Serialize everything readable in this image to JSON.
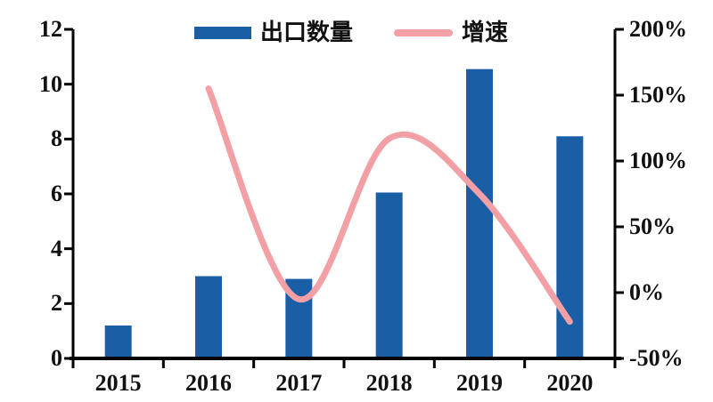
{
  "legend": {
    "items": [
      {
        "label": "出口数量",
        "type": "bar"
      },
      {
        "label": "增速",
        "type": "line"
      }
    ]
  },
  "colors": {
    "bar": "#1a5fa6",
    "line": "#f2a0a5",
    "axis": "#000000",
    "text": "#111111",
    "background": "#ffffff"
  },
  "chart_data": {
    "type": "bar+line",
    "title": "",
    "legend_position": "top",
    "grid": false,
    "categories": [
      "2015",
      "2016",
      "2017",
      "2018",
      "2019",
      "2020"
    ],
    "series": [
      {
        "name": "出口数量",
        "type": "bar",
        "axis": "left",
        "values": [
          1.2,
          3.0,
          2.9,
          6.05,
          10.55,
          8.1
        ]
      },
      {
        "name": "增速",
        "type": "line",
        "axis": "right",
        "unit": "%",
        "values": [
          null,
          155,
          -5,
          117,
          75,
          -22
        ]
      }
    ],
    "left_axis": {
      "min": 0,
      "max": 12,
      "ticks": [
        0,
        2,
        4,
        6,
        8,
        10,
        12
      ],
      "tick_labels": [
        "0",
        "2",
        "4",
        "6",
        "8",
        "10",
        "12"
      ]
    },
    "right_axis": {
      "min": -50,
      "max": 200,
      "ticks": [
        -50,
        0,
        50,
        100,
        150,
        200
      ],
      "tick_labels": [
        "-50%",
        "0%",
        "50%",
        "100%",
        "150%",
        "200%"
      ]
    }
  }
}
